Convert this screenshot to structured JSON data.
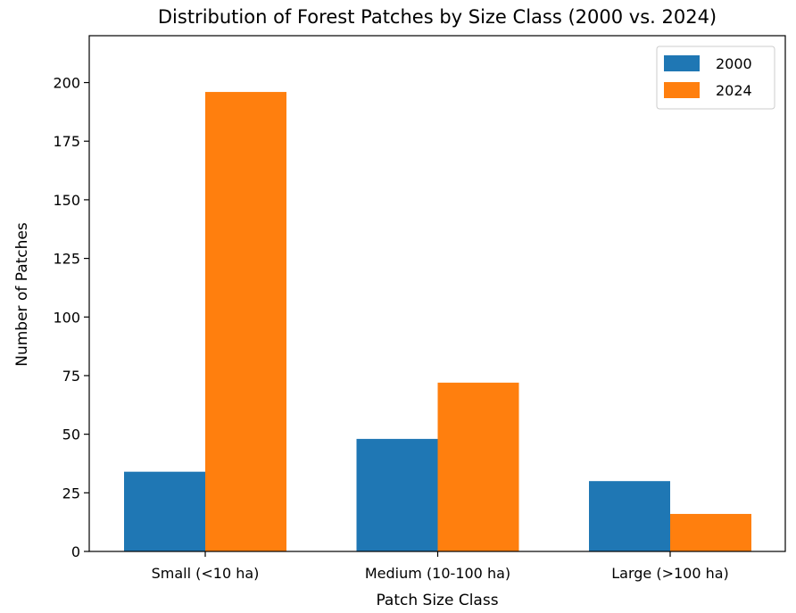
{
  "chart_data": {
    "type": "bar",
    "title": "Distribution of Forest Patches by Size Class (2000 vs. 2024)",
    "xlabel": "Patch Size Class",
    "ylabel": "Number of Patches",
    "categories": [
      "Small (<10 ha)",
      "Medium (10-100 ha)",
      "Large (>100 ha)"
    ],
    "series": [
      {
        "name": "2000",
        "values": [
          34,
          48,
          30
        ],
        "color": "#1f77b4"
      },
      {
        "name": "2024",
        "values": [
          196,
          72,
          16
        ],
        "color": "#ff7f0e"
      }
    ],
    "ylim": [
      0,
      220
    ],
    "yticks": [
      0,
      25,
      50,
      75,
      100,
      125,
      150,
      175,
      200
    ],
    "grid": false,
    "legend_position": "top-right"
  }
}
